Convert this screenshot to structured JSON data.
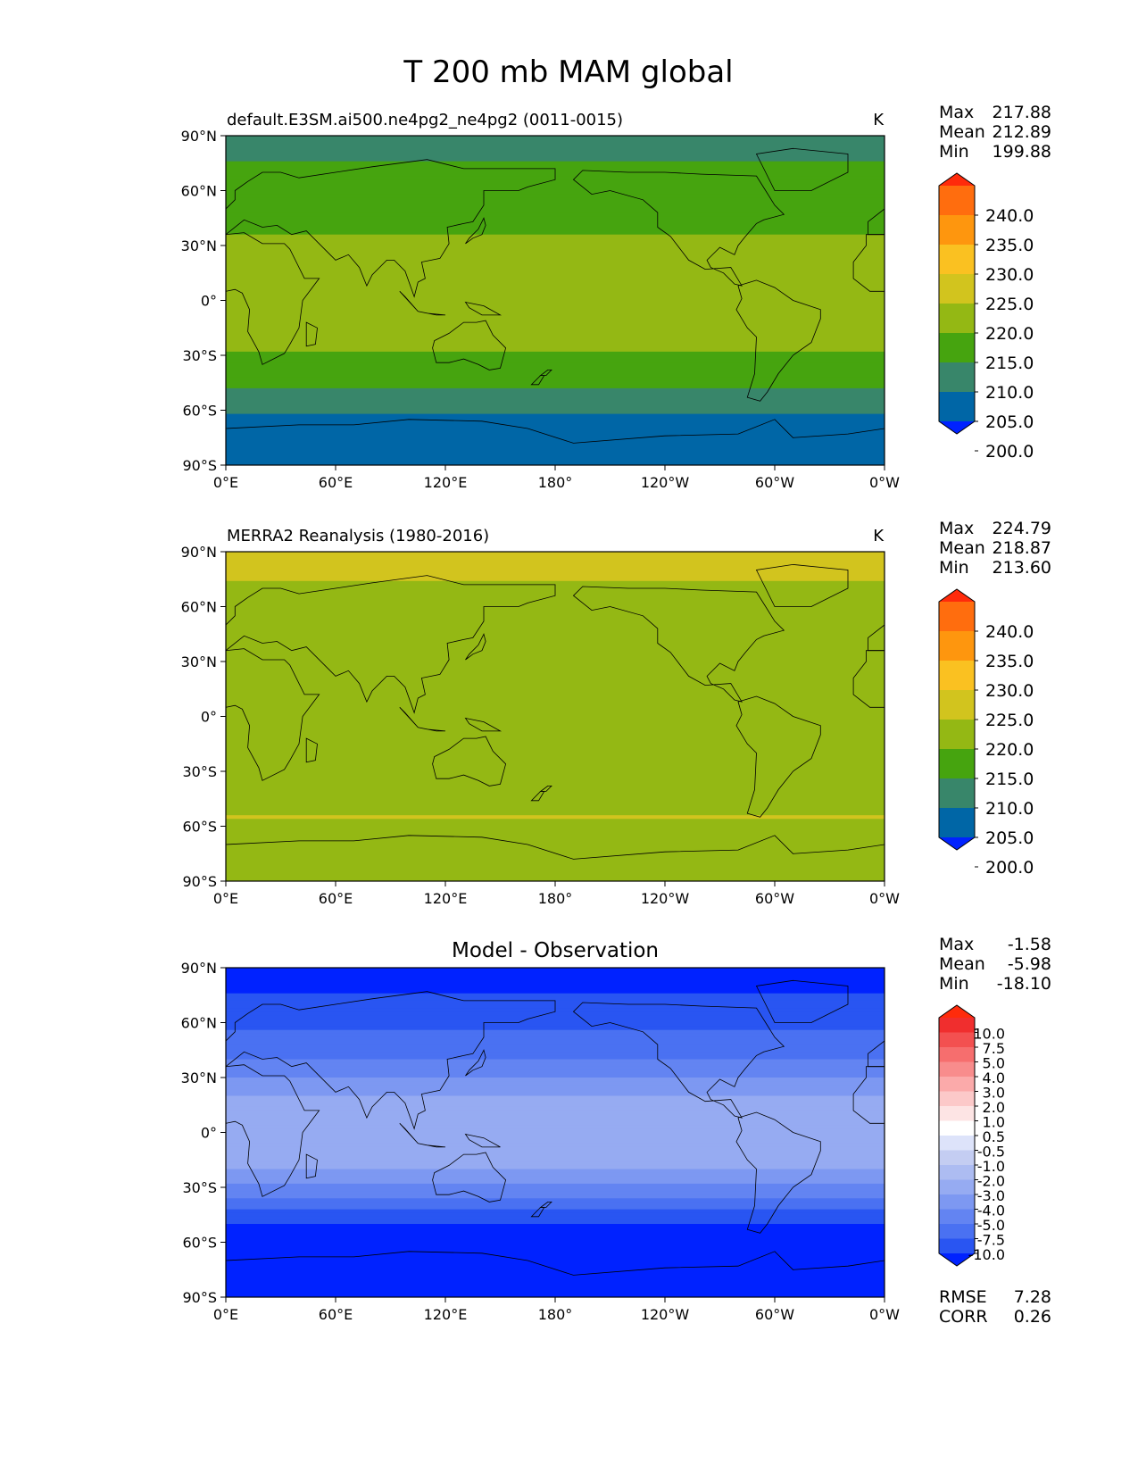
{
  "figure_title": "T 200 mb MAM global",
  "colors": {
    "model_levels": [
      "#0022ff",
      "#0066a6",
      "#38866a",
      "#46a40f",
      "#94b814",
      "#d2c41e",
      "#fac121",
      "#fe960e",
      "#ff6d0e",
      "#ff2b0b"
    ],
    "diff_levels": [
      "#0022ff",
      "#2955f2",
      "#4a71f2",
      "#6384f2",
      "#7d98f2",
      "#96abf2",
      "#adbcf2",
      "#c4cdf2",
      "#dde3fa",
      "#ffffff",
      "#fde4e4",
      "#fcc9c9",
      "#fbaaaa",
      "#f88c8c",
      "#f66e6e",
      "#f35050",
      "#f02e2e",
      "#ff2b0b"
    ],
    "coast": "#000000"
  },
  "chart_data": [
    {
      "type": "heatmap",
      "title": "default.E3SM.ai500.ne4pg2_ne4pg2 (0011-0015)",
      "units": "K",
      "stats": {
        "max_label": "Max",
        "max": "217.88",
        "mean_label": "Mean",
        "mean": "212.89",
        "min_label": "Min",
        "min": "199.88"
      },
      "x": [
        "0°E",
        "60°E",
        "120°E",
        "180°",
        "120°W",
        "60°W",
        "0°W"
      ],
      "y": [
        "90°N",
        "60°N",
        "30°N",
        "0°",
        "30°S",
        "60°S",
        "90°S"
      ],
      "colorbar_ticks": [
        "240.0",
        "235.0",
        "230.0",
        "225.0",
        "220.0",
        "215.0",
        "210.0",
        "205.0",
        "200.0"
      ],
      "extend": "both",
      "zonal_mean_profile": [
        {
          "lat": 90,
          "value": 209
        },
        {
          "lat": 60,
          "value": 211
        },
        {
          "lat": 45,
          "value": 213
        },
        {
          "lat": 25,
          "value": 217
        },
        {
          "lat": 0,
          "value": 218
        },
        {
          "lat": -25,
          "value": 216
        },
        {
          "lat": -40,
          "value": 212
        },
        {
          "lat": -55,
          "value": 208
        },
        {
          "lat": -65,
          "value": 204
        },
        {
          "lat": -90,
          "value": 203
        }
      ]
    },
    {
      "type": "heatmap",
      "title": "MERRA2 Reanalysis (1980-2016)",
      "units": "K",
      "stats": {
        "max_label": "Max",
        "max": "224.79",
        "mean_label": "Mean",
        "mean": "218.87",
        "min_label": "Min",
        "min": "213.60"
      },
      "x": [
        "0°E",
        "60°E",
        "120°E",
        "180°",
        "120°W",
        "60°W",
        "0°W"
      ],
      "y": [
        "90°N",
        "60°N",
        "30°N",
        "0°",
        "30°S",
        "60°S",
        "90°S"
      ],
      "colorbar_ticks": [
        "240.0",
        "235.0",
        "230.0",
        "225.0",
        "220.0",
        "215.0",
        "210.0",
        "205.0",
        "200.0"
      ],
      "extend": "both",
      "zonal_mean_profile": [
        {
          "lat": 90,
          "value": 221
        },
        {
          "lat": 60,
          "value": 219
        },
        {
          "lat": 40,
          "value": 217
        },
        {
          "lat": 20,
          "value": 219
        },
        {
          "lat": 0,
          "value": 220
        },
        {
          "lat": -20,
          "value": 218
        },
        {
          "lat": -40,
          "value": 217
        },
        {
          "lat": -55,
          "value": 220
        },
        {
          "lat": -70,
          "value": 218
        },
        {
          "lat": -90,
          "value": 217
        }
      ]
    },
    {
      "type": "heatmap",
      "title": "Model - Observation",
      "units": "",
      "stats": {
        "max_label": "Max",
        "max": "-1.58",
        "mean_label": "Mean",
        "mean": "-5.98",
        "min_label": "Min",
        "min": "-18.10"
      },
      "x": [
        "0°E",
        "60°E",
        "120°E",
        "180°",
        "120°W",
        "60°W",
        "0°W"
      ],
      "y": [
        "90°N",
        "60°N",
        "30°N",
        "0°",
        "30°S",
        "60°S",
        "90°S"
      ],
      "colorbar_ticks": [
        "10.0",
        "7.5",
        "5.0",
        "4.0",
        "3.0",
        "2.0",
        "1.0",
        "0.5",
        "-0.5",
        "-1.0",
        "-2.0",
        "-3.0",
        "-4.0",
        "-5.0",
        "-7.5",
        "-10.0"
      ],
      "extend": "both",
      "metrics": {
        "rmse_label": "RMSE",
        "rmse": "7.28",
        "corr_label": "CORR",
        "corr": "0.26"
      },
      "zonal_mean_profile": [
        {
          "lat": 90,
          "value": -12
        },
        {
          "lat": 60,
          "value": -8
        },
        {
          "lat": 40,
          "value": -5
        },
        {
          "lat": 20,
          "value": -3
        },
        {
          "lat": 0,
          "value": -2.5
        },
        {
          "lat": -20,
          "value": -3
        },
        {
          "lat": -35,
          "value": -5
        },
        {
          "lat": -50,
          "value": -10
        },
        {
          "lat": -90,
          "value": -12
        }
      ]
    }
  ]
}
